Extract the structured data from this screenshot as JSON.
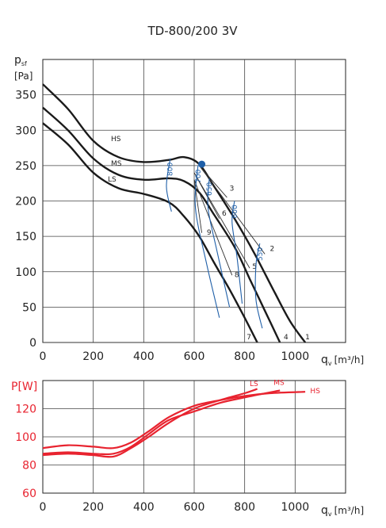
{
  "chart_data": [
    {
      "type": "line",
      "title": "TD-800/200 3V",
      "ylabel_main": "p",
      "ylabel_sub": "sf",
      "ylabel_unit": "[Pa]",
      "xlabel_main": "q",
      "xlabel_sub": "v",
      "xlabel_unit": "[m³/h]",
      "xlim": [
        0,
        1200
      ],
      "ylim": [
        0,
        400
      ],
      "xticks": [
        "0",
        "200",
        "400",
        "600",
        "800",
        "1000"
      ],
      "yticks": [
        "0",
        "50",
        "100",
        "150",
        "200",
        "250",
        "300",
        "350"
      ],
      "grid": true,
      "series": [
        {
          "name": "HS",
          "color": "#1a1a1a",
          "x": [
            0,
            100,
            200,
            300,
            400,
            500,
            560,
            620,
            680,
            760,
            840,
            920,
            980,
            1040
          ],
          "y": [
            365,
            330,
            285,
            262,
            255,
            258,
            262,
            252,
            220,
            175,
            125,
            70,
            30,
            0
          ]
        },
        {
          "name": "MS",
          "color": "#1a1a1a",
          "x": [
            0,
            100,
            200,
            300,
            400,
            500,
            560,
            620,
            680,
            760,
            820,
            880,
            940
          ],
          "y": [
            332,
            300,
            260,
            237,
            230,
            232,
            228,
            212,
            180,
            135,
            90,
            45,
            0
          ]
        },
        {
          "name": "LS",
          "color": "#1a1a1a",
          "x": [
            0,
            100,
            200,
            300,
            400,
            500,
            560,
            620,
            680,
            740,
            800,
            850
          ],
          "y": [
            310,
            280,
            240,
            218,
            210,
            198,
            178,
            150,
            112,
            75,
            35,
            0
          ]
        }
      ],
      "system_curves": [
        {
          "label": "1",
          "x": [
            0,
            1040
          ],
          "y": [
            0,
            0
          ]
        },
        {
          "label": "2",
          "x": [
            620,
            880
          ],
          "y": [
            250,
            125
          ]
        },
        {
          "label": "3",
          "x": [
            620,
            730
          ],
          "y": [
            250,
            205
          ]
        },
        {
          "label": "4",
          "x": [
            940,
            940
          ],
          "y": [
            0,
            0
          ]
        },
        {
          "label": "5",
          "x": [
            600,
            820
          ],
          "y": [
            240,
            105
          ]
        },
        {
          "label": "6",
          "x": [
            600,
            700
          ],
          "y": [
            240,
            175
          ]
        },
        {
          "label": "7",
          "x": [
            800,
            800
          ],
          "y": [
            0,
            0
          ]
        },
        {
          "label": "8",
          "x": [
            600,
            750
          ],
          "y": [
            230,
            95
          ]
        },
        {
          "label": "9",
          "x": [
            600,
            630
          ],
          "y": [
            230,
            155
          ]
        }
      ],
      "iso_rpm": [
        {
          "label": "800",
          "x": [
            505,
            490,
            510
          ],
          "y": [
            260,
            220,
            185
          ]
        },
        {
          "label": "700",
          "x": [
            615,
            605,
            650,
            700
          ],
          "y": [
            250,
            190,
            110,
            35
          ]
        },
        {
          "label": "650",
          "x": [
            660,
            655,
            690,
            740
          ],
          "y": [
            232,
            190,
            130,
            50
          ]
        },
        {
          "label": "600",
          "x": [
            760,
            750,
            770,
            790
          ],
          "y": [
            200,
            170,
            120,
            55
          ]
        },
        {
          "label": "550",
          "x": [
            860,
            845,
            845,
            870
          ],
          "y": [
            140,
            110,
            60,
            20
          ]
        }
      ],
      "operating_point": {
        "x": 630,
        "y": 252
      }
    },
    {
      "type": "line",
      "ylabel": "P[W]",
      "xlabel_main": "q",
      "xlabel_sub": "v",
      "xlabel_unit": "[m³/h]",
      "xlim": [
        0,
        1200
      ],
      "ylim": [
        60,
        140
      ],
      "xticks": [
        "0",
        "200",
        "400",
        "600",
        "800",
        "1000"
      ],
      "yticks": [
        "60",
        "80",
        "100",
        "120"
      ],
      "grid": true,
      "series": [
        {
          "name": "LS",
          "color": "#e8232f",
          "x": [
            0,
            100,
            200,
            280,
            350,
            420,
            500,
            600,
            700,
            800,
            850
          ],
          "y": [
            87,
            88,
            87,
            86,
            92,
            100,
            110,
            120,
            126,
            131,
            134
          ]
        },
        {
          "name": "MS",
          "color": "#e8232f",
          "x": [
            0,
            100,
            200,
            280,
            350,
            420,
            500,
            600,
            700,
            800,
            940
          ],
          "y": [
            88,
            89,
            88,
            88,
            93,
            102,
            112,
            118,
            124,
            128,
            133
          ]
        },
        {
          "name": "HS",
          "color": "#e8232f",
          "x": [
            0,
            100,
            200,
            280,
            350,
            420,
            500,
            600,
            700,
            800,
            900,
            1040
          ],
          "y": [
            92,
            94,
            93,
            92,
            96,
            104,
            114,
            122,
            126,
            129,
            131,
            132
          ]
        }
      ]
    }
  ]
}
